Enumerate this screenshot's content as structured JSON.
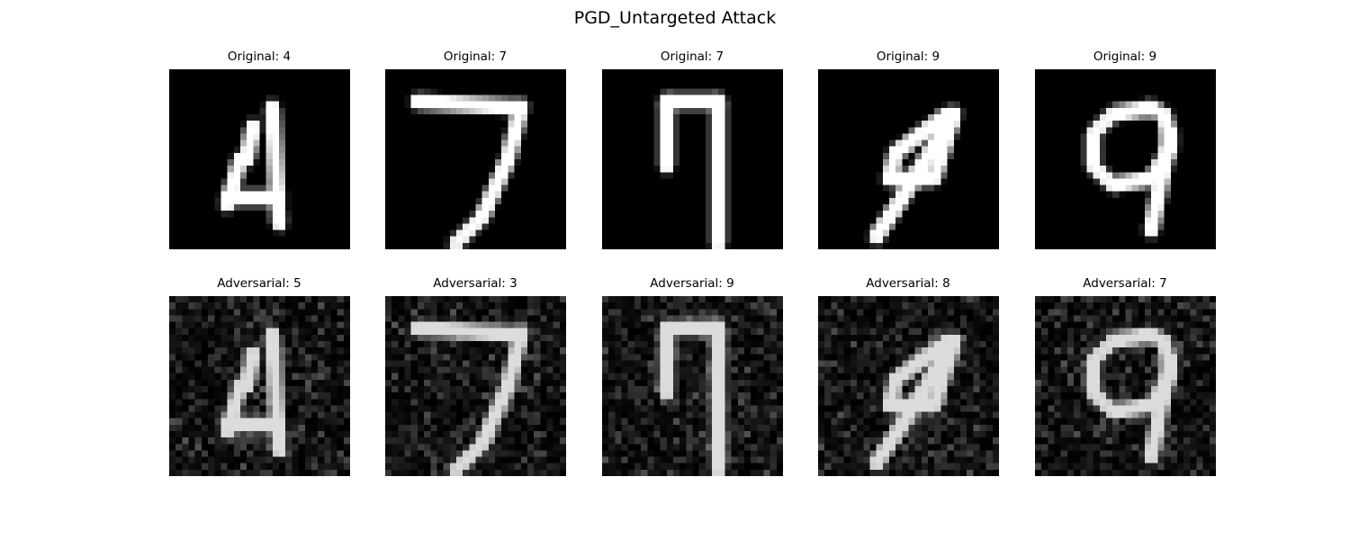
{
  "figure": {
    "title": "PGD_Untargeted Attack"
  },
  "panels": [
    {
      "row": "original",
      "title": "Original: 4",
      "digit": "4",
      "variant": 0
    },
    {
      "row": "original",
      "title": "Original: 7",
      "digit": "7",
      "variant": 0
    },
    {
      "row": "original",
      "title": "Original: 7",
      "digit": "7",
      "variant": 1
    },
    {
      "row": "original",
      "title": "Original: 9",
      "digit": "9",
      "variant": 1
    },
    {
      "row": "original",
      "title": "Original: 9",
      "digit": "9",
      "variant": 0
    },
    {
      "row": "adversarial",
      "title": "Adversarial: 5",
      "digit": "4",
      "variant": 0
    },
    {
      "row": "adversarial",
      "title": "Adversarial: 3",
      "digit": "7",
      "variant": 0
    },
    {
      "row": "adversarial",
      "title": "Adversarial: 9",
      "digit": "7",
      "variant": 1
    },
    {
      "row": "adversarial",
      "title": "Adversarial: 8",
      "digit": "9",
      "variant": 1
    },
    {
      "row": "adversarial",
      "title": "Adversarial: 7",
      "digit": "9",
      "variant": 0
    }
  ],
  "colormap": "gray"
}
